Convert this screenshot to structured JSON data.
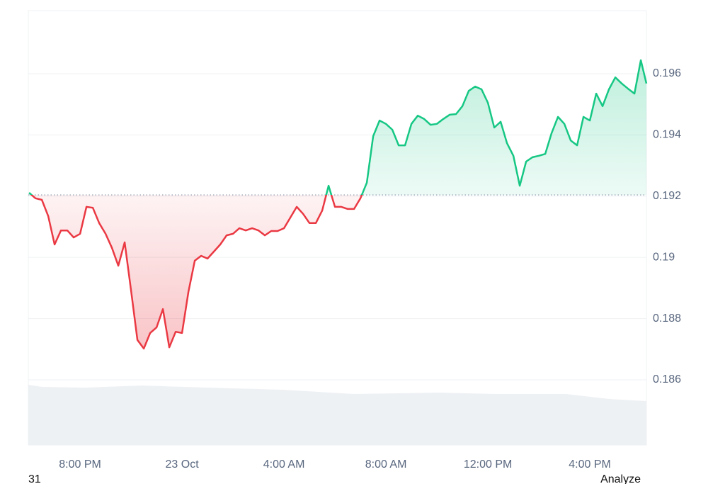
{
  "chart_data": {
    "type": "baseline-line",
    "x": [
      -6,
      -5.75,
      -5.5,
      -5.25,
      -5,
      -4.75,
      -4.5,
      -4.25,
      -4,
      -3.75,
      -3.5,
      -3.25,
      -3,
      -2.75,
      -2.5,
      -2.25,
      -2,
      -1.75,
      -1.5,
      -1.25,
      -1,
      -0.75,
      -0.5,
      -0.25,
      0,
      0.25,
      0.5,
      0.75,
      1,
      1.25,
      1.5,
      1.75,
      2,
      2.25,
      2.5,
      2.75,
      3,
      3.25,
      3.5,
      3.75,
      4,
      4.25,
      4.5,
      4.75,
      5,
      5.25,
      5.5,
      5.75,
      6,
      6.25,
      6.5,
      6.75,
      7,
      7.25,
      7.5,
      7.75,
      8,
      8.25,
      8.5,
      8.75,
      9,
      9.25,
      9.5,
      9.75,
      10,
      10.25,
      10.5,
      10.75,
      11,
      11.25,
      11.5,
      11.75,
      12,
      12.25,
      12.5,
      12.75,
      13,
      13.25,
      13.5,
      13.75,
      14,
      14.25,
      14.5,
      14.75,
      15,
      15.25,
      15.5,
      15.75,
      16,
      16.25,
      16.5,
      16.75,
      17,
      17.25,
      17.5,
      17.75,
      18,
      18.22
    ],
    "values": [
      0.19211,
      0.19193,
      0.19188,
      0.19135,
      0.19042,
      0.19088,
      0.19088,
      0.19065,
      0.19077,
      0.19165,
      0.19162,
      0.19112,
      0.19077,
      0.19031,
      0.18973,
      0.19049,
      0.18892,
      0.1873,
      0.18702,
      0.18753,
      0.18771,
      0.18831,
      0.18706,
      0.18757,
      0.18753,
      0.18887,
      0.18989,
      0.19005,
      0.18996,
      0.19019,
      0.19042,
      0.19072,
      0.19077,
      0.19095,
      0.19088,
      0.19095,
      0.19088,
      0.19072,
      0.19086,
      0.19086,
      0.19095,
      0.1913,
      0.19165,
      0.19142,
      0.19112,
      0.19112,
      0.19153,
      0.19234,
      0.19165,
      0.19165,
      0.19158,
      0.19158,
      0.19193,
      0.19244,
      0.19396,
      0.19447,
      0.19436,
      0.19417,
      0.19366,
      0.19366,
      0.19436,
      0.19463,
      0.19452,
      0.19433,
      0.19436,
      0.19452,
      0.19466,
      0.19468,
      0.19494,
      0.19544,
      0.19558,
      0.19549,
      0.19505,
      0.19424,
      0.19443,
      0.19373,
      0.19332,
      0.19234,
      0.19313,
      0.19327,
      0.19332,
      0.19338,
      0.19406,
      0.19459,
      0.19436,
      0.19382,
      0.19366,
      0.19459,
      0.19447,
      0.19535,
      0.19494,
      0.19549,
      0.19588,
      0.19568,
      0.19551,
      0.19535,
      0.19644,
      0.19568
    ],
    "baseline": 0.19204,
    "up_color": "#16c784",
    "down_color": "#ea3943",
    "xlim": [
      -6.03,
      18.22
    ],
    "ylim": [
      0.18387,
      0.19806
    ],
    "xticks": [
      {
        "value": -4,
        "label": "8:00 PM"
      },
      {
        "value": 0,
        "label": "23 Oct"
      },
      {
        "value": 4,
        "label": "4:00 AM"
      },
      {
        "value": 8,
        "label": "8:00 AM"
      },
      {
        "value": 12,
        "label": "12:00 PM"
      },
      {
        "value": 16,
        "label": "4:00 PM"
      }
    ],
    "yticks": [
      0.186,
      0.188,
      0.19,
      0.192,
      0.194,
      0.196
    ],
    "grid": true,
    "footer_left": "31",
    "footer_right": "Analyze"
  }
}
